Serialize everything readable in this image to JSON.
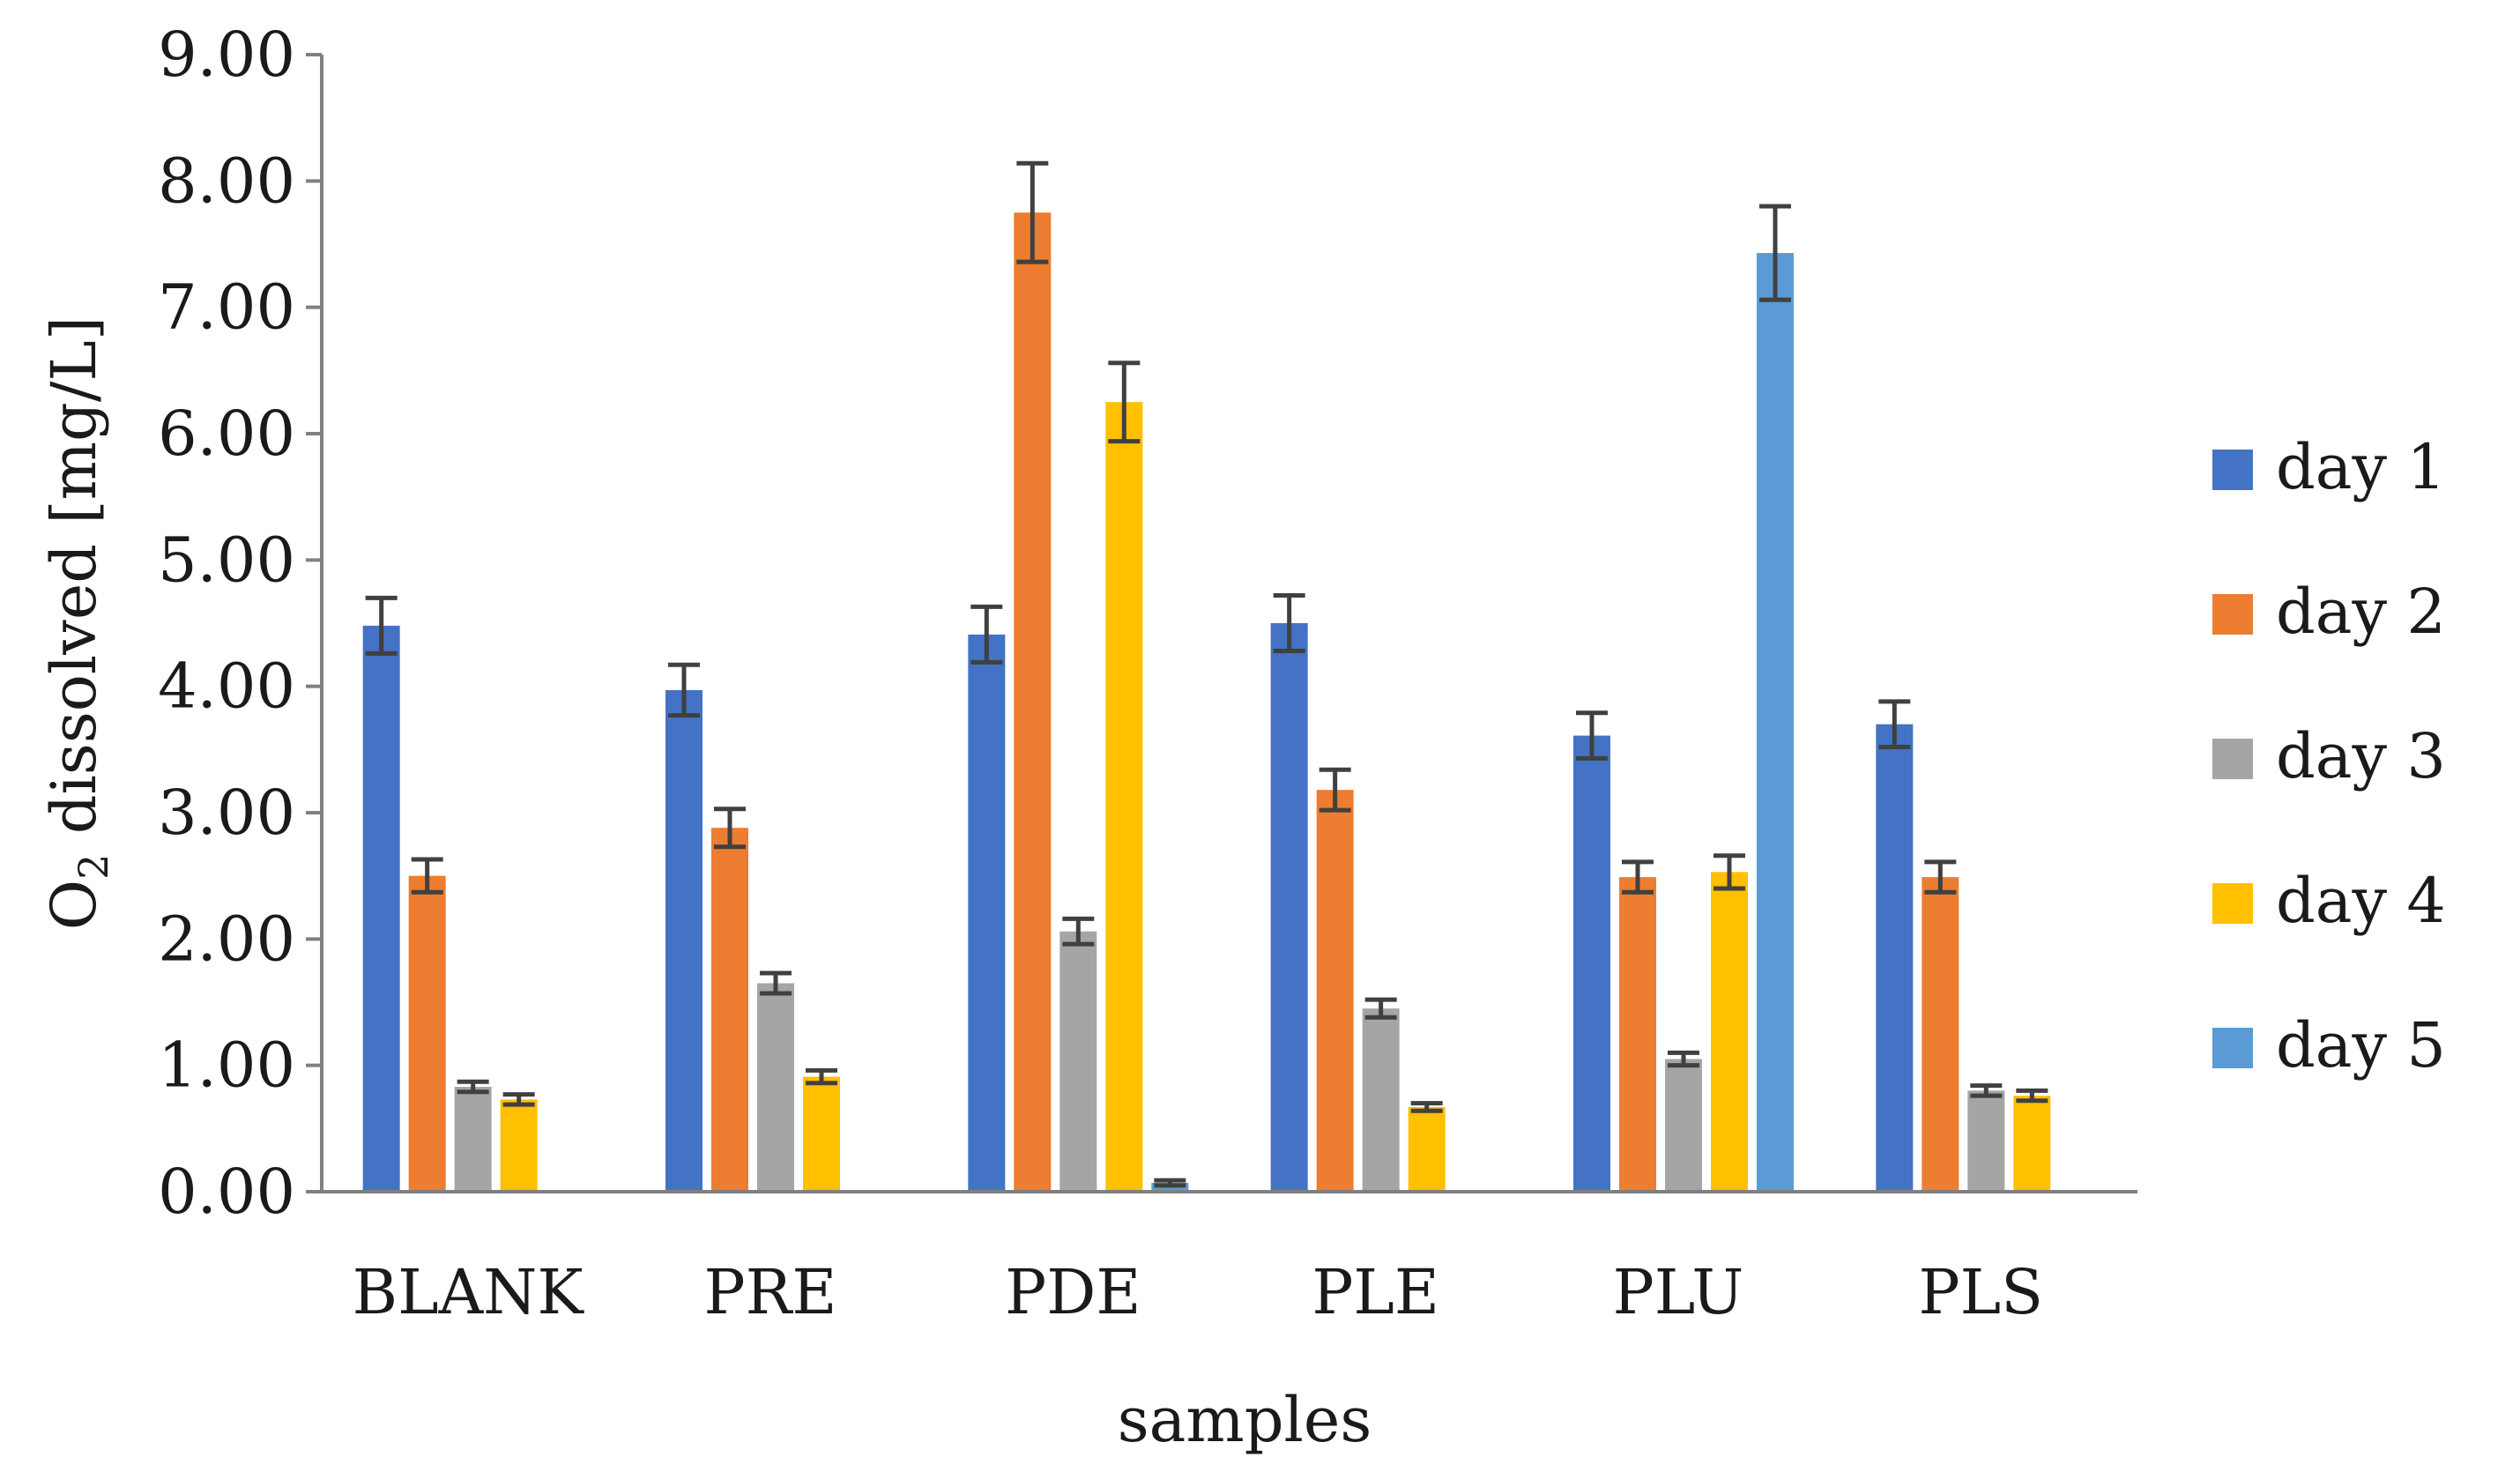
{
  "chart_data": {
    "type": "bar",
    "title": "",
    "xlabel": "samples",
    "ylabel": {
      "main": "O",
      "sub": "2",
      "rest": " dissolved [mg/L]"
    },
    "ylim": [
      0,
      9
    ],
    "ytick_step": 1,
    "ytick_labels": [
      "0.00",
      "1.00",
      "2.00",
      "3.00",
      "4.00",
      "5.00",
      "6.00",
      "7.00",
      "8.00",
      "9.00"
    ],
    "categories": [
      "BLANK",
      "PRE",
      "PDE",
      "PLE",
      "PLU",
      "PLS"
    ],
    "legend_position": "right",
    "series": [
      {
        "name": "day 1",
        "color": "#4472C4",
        "values": [
          4.48,
          3.97,
          4.41,
          4.5,
          3.61,
          3.7
        ],
        "errors": [
          0.22,
          0.2,
          0.22,
          0.22,
          0.18,
          0.18
        ]
      },
      {
        "name": "day 2",
        "color": "#ED7D31",
        "values": [
          2.5,
          2.88,
          7.75,
          3.18,
          2.49,
          2.49
        ],
        "errors": [
          0.13,
          0.15,
          0.39,
          0.16,
          0.12,
          0.12
        ]
      },
      {
        "name": "day 3",
        "color": "#A5A5A5",
        "values": [
          0.83,
          1.65,
          2.06,
          1.45,
          1.05,
          0.8
        ],
        "errors": [
          0.04,
          0.08,
          0.1,
          0.07,
          0.05,
          0.04
        ]
      },
      {
        "name": "day 4",
        "color": "#FFC000",
        "values": [
          0.73,
          0.91,
          6.25,
          0.67,
          2.53,
          0.76
        ],
        "errors": [
          0.04,
          0.05,
          0.31,
          0.03,
          0.13,
          0.04
        ]
      },
      {
        "name": "day 5",
        "color": "#5B9BD5",
        "values": [
          null,
          null,
          0.07,
          null,
          7.43,
          null
        ],
        "errors": [
          null,
          null,
          0.02,
          null,
          0.37,
          null
        ]
      }
    ],
    "error_bar_color": "#404040",
    "axis_color": "#808080"
  }
}
